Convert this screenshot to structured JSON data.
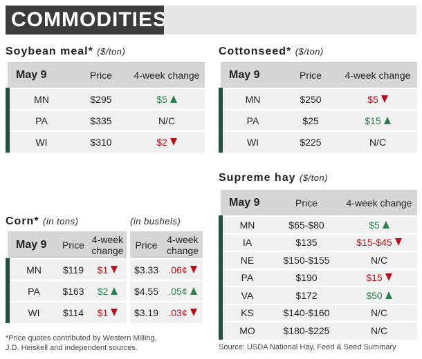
{
  "header": {
    "title": "COMMODITIES"
  },
  "soybean": {
    "title": "Soybean meal*",
    "unit": "($/ton)",
    "columns": [
      "May 9",
      "Price",
      "4-week change"
    ],
    "rows": [
      [
        "MN",
        "$295",
        "$5"
      ],
      [
        "PA",
        "$335",
        "N/C"
      ],
      [
        "WI",
        "$310",
        "$2"
      ]
    ]
  },
  "cottonseed": {
    "title": "Cottonseed*",
    "unit": "($/ton)",
    "columns": [
      "May 9",
      "Price",
      "4-week change"
    ],
    "rows": [
      [
        "MN",
        "$250",
        "$5"
      ],
      [
        "PA",
        "$25",
        "$15"
      ],
      [
        "WI",
        "$225",
        "N/C"
      ]
    ]
  },
  "hay": {
    "title": "Supreme hay",
    "unit": "($/ton)",
    "columns": [
      "May 9",
      "Price",
      "4-week change"
    ],
    "rows": [
      [
        "MN",
        "$65-$80",
        "$5"
      ],
      [
        "IA",
        "$135",
        "$15-$45"
      ],
      [
        "NE",
        "$150-$155",
        "N/C"
      ],
      [
        "PA",
        "$190",
        "$15"
      ],
      [
        "VA",
        "$172",
        "$50"
      ],
      [
        "KS",
        "$140-$160",
        "N/C"
      ],
      [
        "MO",
        "$180-$225",
        "N/C"
      ]
    ],
    "source": "Source: USDA National Hay, Feed & Seed Summary"
  },
  "corn": {
    "title": "Corn*",
    "unit": "(in tons)",
    "bushels_unit": "(in bushels)",
    "columns": [
      "May 9",
      "Price",
      "4-week change"
    ],
    "bushel_columns": [
      "Price",
      "4-week change"
    ],
    "rows": [
      [
        "MN",
        "$119",
        "$1",
        "$3.33",
        ".06¢"
      ],
      [
        "PA",
        "$163",
        "$2",
        "$4.55",
        ".05¢"
      ],
      [
        "WI",
        "$114",
        "$1",
        "$3.19",
        ".03¢"
      ]
    ]
  },
  "footnote": [
    "*Price quotes contributed by Western Milling,",
    "J.D. Heiskell and independent sources."
  ]
}
